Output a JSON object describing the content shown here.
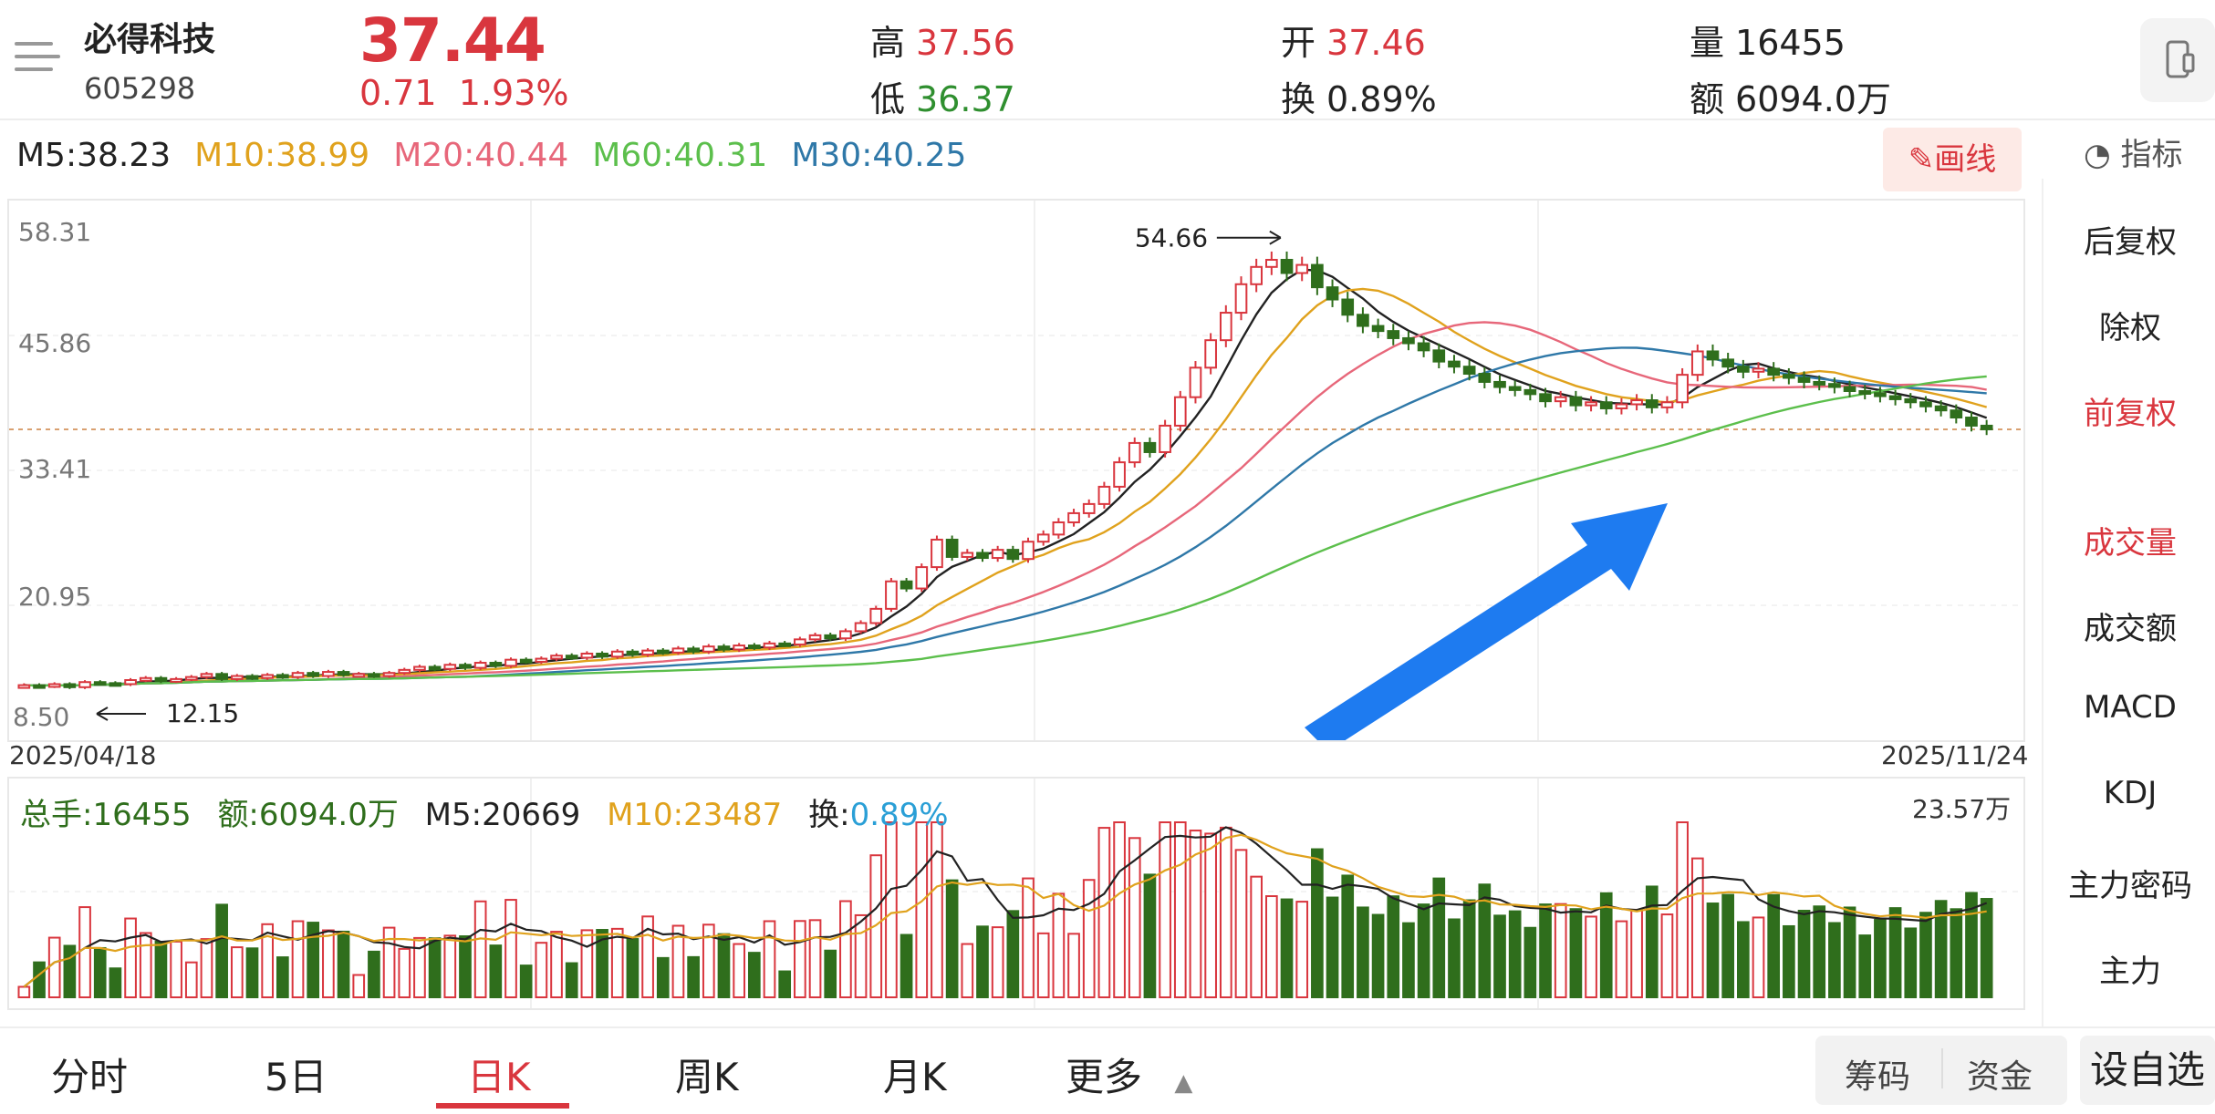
{
  "stock": {
    "name": "必得科技",
    "code": "605298",
    "price": "37.44",
    "change": "0.71",
    "change_pct": "1.93%"
  },
  "quote": {
    "high_label": "高",
    "high": "37.56",
    "low_label": "低",
    "low": "36.37",
    "open_label": "开",
    "open": "37.46",
    "turnover_label": "换",
    "turnover": "0.89%",
    "volume_label": "量",
    "volume": "16455",
    "amount_label": "额",
    "amount": "6094.0万"
  },
  "ma_legend": [
    {
      "text": "M5:38.23",
      "color": "#222222"
    },
    {
      "text": "M10:38.99",
      "color": "#e0a21d"
    },
    {
      "text": "M20:40.44",
      "color": "#e7677a"
    },
    {
      "text": "M60:40.31",
      "color": "#5cbf4c"
    },
    {
      "text": "M30:40.25",
      "color": "#2f78a8"
    }
  ],
  "toolbar": {
    "draw_label": "画线",
    "indicator_label": "指标"
  },
  "side_menu": {
    "items": [
      "后复权",
      "除权",
      "前复权",
      "成交量",
      "成交额",
      "MACD",
      "KDJ",
      "主力密码",
      "主力"
    ],
    "active": [
      "前复权",
      "成交量"
    ]
  },
  "price_axis": [
    "58.31",
    "45.86",
    "33.41",
    "20.95",
    "8.50"
  ],
  "dates": {
    "start": "2025/04/18",
    "end": "2025/11/24"
  },
  "annotations": {
    "high_mark": "54.66",
    "low_mark": "12.15"
  },
  "volume_header": {
    "total": "总手:16455",
    "amount": "额:6094.0万",
    "m5": "M5:20669",
    "m10": "M10:23487",
    "turnover_label": "换:",
    "turnover": "0.89%",
    "max": "23.57万"
  },
  "tabs": [
    "分时",
    "5日",
    "日K",
    "周K",
    "月K",
    "更多"
  ],
  "active_tab": "日K",
  "pills": [
    "筹码",
    "资金"
  ],
  "custom_label": "设自选",
  "colors": {
    "up": "#d9363e",
    "down": "#2f6e1c",
    "accent": "#d9363e",
    "arrow": "#1e7bf0"
  },
  "chart_data": {
    "type": "candlestick",
    "title": "",
    "x_range": [
      "2025/04/18",
      "2025/11/24"
    ],
    "ylim": [
      8.5,
      58.31
    ],
    "y_ticks": [
      58.31,
      45.86,
      33.41,
      20.95,
      8.5
    ],
    "reference_price": 37.44,
    "period_high": 54.66,
    "period_low": 12.15,
    "close_profile": [
      12.3,
      12.2,
      12.4,
      12.1,
      12.6,
      12.5,
      12.4,
      12.8,
      13.0,
      12.7,
      12.9,
      13.1,
      13.4,
      12.9,
      13.2,
      13.0,
      13.3,
      13.1,
      13.5,
      13.2,
      13.6,
      13.3,
      13.4,
      13.2,
      13.5,
      13.8,
      14.1,
      13.9,
      14.3,
      14.0,
      14.5,
      14.2,
      14.8,
      14.6,
      14.9,
      15.2,
      15.0,
      15.4,
      15.1,
      15.6,
      15.3,
      15.7,
      15.5,
      15.9,
      15.6,
      16.1,
      15.8,
      16.2,
      16.0,
      16.4,
      16.3,
      16.8,
      17.2,
      16.9,
      17.6,
      18.4,
      19.8,
      22.5,
      21.8,
      23.9,
      26.6,
      24.9,
      25.3,
      24.8,
      25.6,
      24.7,
      26.4,
      27.1,
      28.3,
      29.2,
      30.1,
      31.8,
      34.2,
      36.1,
      35.2,
      37.8,
      40.6,
      43.5,
      46.2,
      48.9,
      51.7,
      53.4,
      54.1,
      52.8,
      53.6,
      51.4,
      50.2,
      48.7,
      47.6,
      47.1,
      46.4,
      45.9,
      45.2,
      44.1,
      43.6,
      42.9,
      42.1,
      41.6,
      41.3,
      40.9,
      40.2,
      40.6,
      39.8,
      40.1,
      39.5,
      39.9,
      40.3,
      39.6,
      40.1,
      42.8,
      45.1,
      44.3,
      43.6,
      43.1,
      43.4,
      42.8,
      42.5,
      42.1,
      41.9,
      41.6,
      41.2,
      41.0,
      40.7,
      40.4,
      40.1,
      39.7,
      39.3,
      38.6,
      37.8,
      37.44
    ],
    "volume_scale_max": "23.57万"
  }
}
